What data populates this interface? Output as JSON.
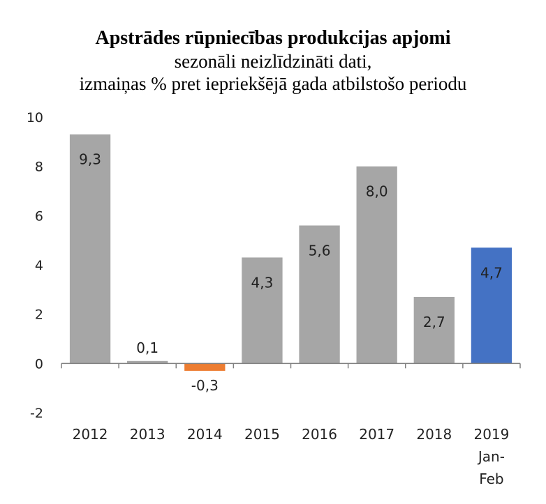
{
  "chart_data": {
    "type": "bar",
    "title": "Apstrādes rūpniecības produkcijas apjomi",
    "subtitle_line1": "sezonāli neizlīdzināti dati,",
    "subtitle_line2": "izmaiņas % pret iepriekšējā gada atbilstošo periodu",
    "categories": [
      [
        "2012"
      ],
      [
        "2013"
      ],
      [
        "2014"
      ],
      [
        "2015"
      ],
      [
        "2016"
      ],
      [
        "2017"
      ],
      [
        "2018"
      ],
      [
        "2019",
        "Jan-",
        "Feb"
      ]
    ],
    "values": [
      9.3,
      0.1,
      -0.3,
      4.3,
      5.6,
      8.0,
      2.7,
      4.7
    ],
    "data_labels": [
      "9,3",
      "0,1",
      "-0,3",
      "4,3",
      "5,6",
      "8,0",
      "2,7",
      "4,7"
    ],
    "colors": [
      "#a6a6a6",
      "#a6a6a6",
      "#ed7d31",
      "#a6a6a6",
      "#a6a6a6",
      "#a6a6a6",
      "#a6a6a6",
      "#4472c4"
    ],
    "ylim": [
      -2,
      10
    ],
    "yticks": [
      "-2",
      "0",
      "2",
      "4",
      "6",
      "8",
      "10"
    ],
    "grid": false,
    "legend": "none"
  }
}
